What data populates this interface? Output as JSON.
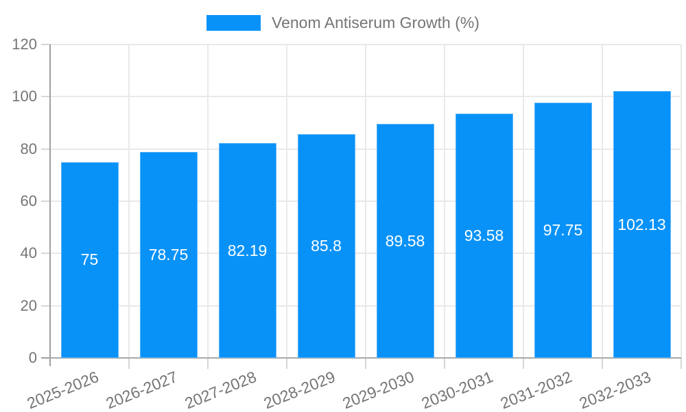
{
  "legend": {
    "label": "Venom Antiserum Growth (%)",
    "swatch_color": "#0892f8",
    "position": "top"
  },
  "chart_data": {
    "type": "bar",
    "title": "",
    "xlabel": "",
    "ylabel": "",
    "categories": [
      "2025-2026",
      "2026-2027",
      "2027-2028",
      "2028-2029",
      "2029-2030",
      "2030-2031",
      "2031-2032",
      "2032-2033"
    ],
    "series": [
      {
        "name": "Venom Antiserum Growth (%)",
        "values": [
          75,
          78.75,
          82.19,
          85.8,
          89.58,
          93.58,
          97.75,
          102.13
        ],
        "value_labels": [
          "75",
          "78.75",
          "82.19",
          "85.8",
          "89.58",
          "93.58",
          "97.75",
          "102.13"
        ]
      }
    ],
    "ylim": [
      0,
      120
    ],
    "yticks": [
      0,
      20,
      40,
      60,
      80,
      100,
      120
    ],
    "grid": true,
    "value_labels_shown": true,
    "legend_position": "top"
  },
  "colors": {
    "bar": "#0892f8",
    "bar_edge": "#5cb4f8",
    "axis_line": "#9e9e9e",
    "baseline": "#a8a8a8",
    "grid_line": "#e9e9e9",
    "tick": "#d6d6d6",
    "text": "#757575",
    "value_label": "#ffffff",
    "background": "#ffffff"
  }
}
